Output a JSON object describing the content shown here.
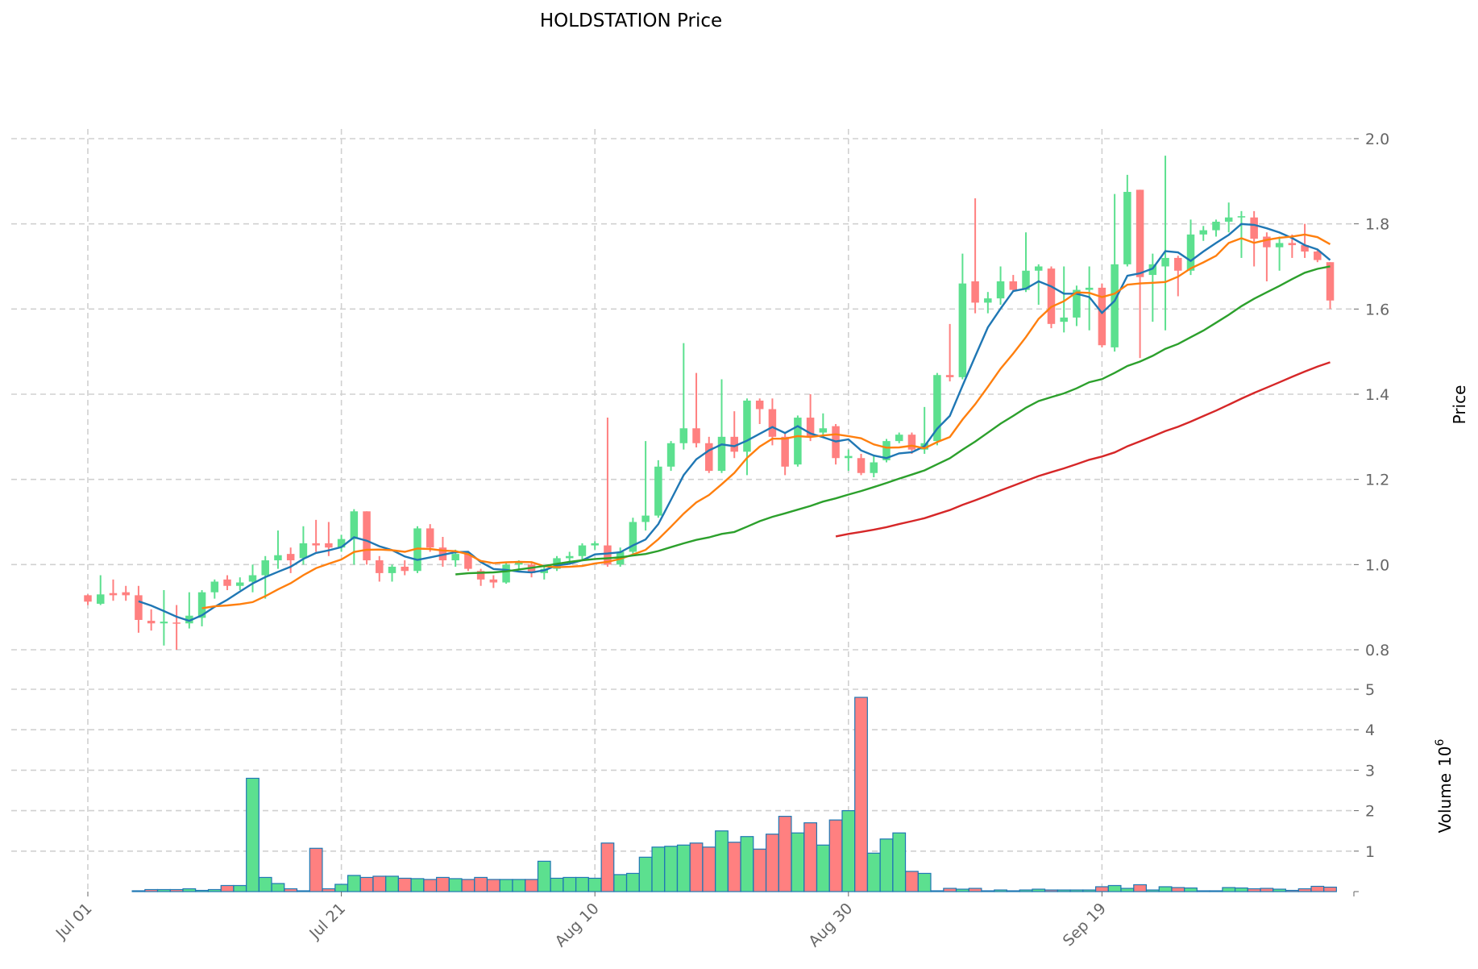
{
  "chart_data": {
    "type": "candlestick",
    "title": "HOLDSTATION Price",
    "ylabel": "Price",
    "volume_label": "Volume",
    "volume_exponent_label": "10",
    "volume_exponent": "6",
    "start_date": "2024-07-01",
    "x_ticks": [
      "Jul 01",
      "Jul 21",
      "Aug 10",
      "Aug 30",
      "Sep 19"
    ],
    "x_tick_days": [
      0,
      20,
      40,
      60,
      80
    ],
    "price_ylim": [
      0.8,
      2.0
    ],
    "price_ticks": [
      "0.8",
      "1.0",
      "1.2",
      "1.4",
      "1.6",
      "1.8",
      "2.0"
    ],
    "volume_ylim": [
      0,
      5
    ],
    "volume_ticks": [
      "1",
      "2",
      "3",
      "4",
      "5"
    ],
    "grid": true,
    "colors": {
      "up": "#5ce08f",
      "down": "#ff8080",
      "volume_edge": "#1f77b4",
      "ma": [
        "#1f77b4",
        "#ff7f0e",
        "#2ca02c",
        "#d62728"
      ]
    },
    "ma_periods": [
      5,
      10,
      30,
      60
    ],
    "ohlc": [
      [
        0.928,
        0.93,
        0.905,
        0.913
      ],
      [
        0.908,
        0.975,
        0.905,
        0.93
      ],
      [
        0.933,
        0.965,
        0.915,
        0.928
      ],
      [
        0.935,
        0.95,
        0.915,
        0.928
      ],
      [
        0.928,
        0.95,
        0.84,
        0.87
      ],
      [
        0.868,
        0.895,
        0.845,
        0.862
      ],
      [
        0.862,
        0.94,
        0.81,
        0.866
      ],
      [
        0.864,
        0.905,
        0.8,
        0.862
      ],
      [
        0.862,
        0.935,
        0.85,
        0.88
      ],
      [
        0.875,
        0.94,
        0.855,
        0.935
      ],
      [
        0.935,
        0.965,
        0.92,
        0.96
      ],
      [
        0.965,
        0.975,
        0.94,
        0.95
      ],
      [
        0.95,
        0.97,
        0.94,
        0.958
      ],
      [
        0.96,
        1.0,
        0.935,
        0.975
      ],
      [
        0.975,
        1.02,
        0.92,
        1.01
      ],
      [
        1.01,
        1.08,
        0.99,
        1.022
      ],
      [
        1.025,
        1.04,
        0.98,
        1.01
      ],
      [
        1.015,
        1.09,
        1.0,
        1.05
      ],
      [
        1.05,
        1.105,
        1.03,
        1.045
      ],
      [
        1.05,
        1.1,
        1.02,
        1.04
      ],
      [
        1.04,
        1.07,
        1.03,
        1.06
      ],
      [
        1.06,
        1.13,
        1.0,
        1.125
      ],
      [
        1.125,
        1.125,
        1.0,
        1.01
      ],
      [
        1.01,
        1.02,
        0.96,
        0.98
      ],
      [
        0.98,
        1.0,
        0.96,
        0.995
      ],
      [
        0.995,
        1.01,
        0.975,
        0.985
      ],
      [
        0.985,
        1.09,
        0.98,
        1.085
      ],
      [
        1.085,
        1.095,
        1.03,
        1.04
      ],
      [
        1.04,
        1.065,
        0.995,
        1.01
      ],
      [
        1.01,
        1.035,
        0.995,
        1.025
      ],
      [
        1.025,
        1.03,
        0.985,
        0.99
      ],
      [
        0.985,
        0.99,
        0.95,
        0.965
      ],
      [
        0.965,
        0.975,
        0.945,
        0.958
      ],
      [
        0.958,
        1.005,
        0.955,
        1.0
      ],
      [
        1.0,
        1.01,
        0.99,
        1.005
      ],
      [
        1.0,
        1.005,
        0.97,
        0.98
      ],
      [
        0.98,
        0.995,
        0.965,
        0.99
      ],
      [
        0.99,
        1.02,
        0.985,
        1.015
      ],
      [
        1.015,
        1.03,
        1.0,
        1.02
      ],
      [
        1.02,
        1.05,
        1.01,
        1.045
      ],
      [
        1.045,
        1.055,
        1.035,
        1.05
      ],
      [
        1.045,
        1.345,
        0.995,
        1.0
      ],
      [
        1.0,
        1.04,
        0.995,
        1.03
      ],
      [
        1.03,
        1.11,
        1.02,
        1.1
      ],
      [
        1.1,
        1.29,
        1.08,
        1.115
      ],
      [
        1.115,
        1.245,
        1.11,
        1.23
      ],
      [
        1.23,
        1.29,
        1.22,
        1.285
      ],
      [
        1.285,
        1.52,
        1.27,
        1.32
      ],
      [
        1.32,
        1.45,
        1.275,
        1.285
      ],
      [
        1.285,
        1.3,
        1.215,
        1.22
      ],
      [
        1.22,
        1.435,
        1.215,
        1.3
      ],
      [
        1.3,
        1.36,
        1.25,
        1.265
      ],
      [
        1.265,
        1.39,
        1.21,
        1.385
      ],
      [
        1.385,
        1.39,
        1.33,
        1.365
      ],
      [
        1.365,
        1.39,
        1.28,
        1.3
      ],
      [
        1.3,
        1.31,
        1.21,
        1.23
      ],
      [
        1.235,
        1.35,
        1.23,
        1.345
      ],
      [
        1.345,
        1.4,
        1.29,
        1.3
      ],
      [
        1.31,
        1.355,
        1.3,
        1.32
      ],
      [
        1.325,
        1.33,
        1.235,
        1.25
      ],
      [
        1.25,
        1.27,
        1.22,
        1.255
      ],
      [
        1.25,
        1.26,
        1.21,
        1.215
      ],
      [
        1.215,
        1.255,
        1.205,
        1.24
      ],
      [
        1.245,
        1.295,
        1.24,
        1.29
      ],
      [
        1.29,
        1.31,
        1.285,
        1.305
      ],
      [
        1.305,
        1.31,
        1.26,
        1.27
      ],
      [
        1.27,
        1.37,
        1.26,
        1.285
      ],
      [
        1.29,
        1.45,
        1.28,
        1.445
      ],
      [
        1.445,
        1.565,
        1.43,
        1.44
      ],
      [
        1.44,
        1.73,
        1.435,
        1.66
      ],
      [
        1.665,
        1.86,
        1.59,
        1.615
      ],
      [
        1.615,
        1.64,
        1.59,
        1.625
      ],
      [
        1.625,
        1.7,
        1.61,
        1.665
      ],
      [
        1.665,
        1.68,
        1.64,
        1.645
      ],
      [
        1.645,
        1.78,
        1.64,
        1.69
      ],
      [
        1.69,
        1.705,
        1.61,
        1.7
      ],
      [
        1.695,
        1.7,
        1.555,
        1.565
      ],
      [
        1.57,
        1.7,
        1.545,
        1.58
      ],
      [
        1.58,
        1.655,
        1.56,
        1.645
      ],
      [
        1.645,
        1.7,
        1.55,
        1.65
      ],
      [
        1.65,
        1.66,
        1.51,
        1.515
      ],
      [
        1.51,
        1.87,
        1.5,
        1.705
      ],
      [
        1.705,
        1.915,
        1.7,
        1.875
      ],
      [
        1.88,
        1.88,
        1.485,
        1.675
      ],
      [
        1.68,
        1.73,
        1.57,
        1.705
      ],
      [
        1.7,
        1.96,
        1.55,
        1.72
      ],
      [
        1.72,
        1.725,
        1.63,
        1.69
      ],
      [
        1.69,
        1.81,
        1.68,
        1.775
      ],
      [
        1.775,
        1.795,
        1.76,
        1.785
      ],
      [
        1.785,
        1.81,
        1.77,
        1.805
      ],
      [
        1.805,
        1.85,
        1.78,
        1.815
      ],
      [
        1.815,
        1.83,
        1.72,
        1.818
      ],
      [
        1.815,
        1.83,
        1.7,
        1.765
      ],
      [
        1.77,
        1.78,
        1.665,
        1.745
      ],
      [
        1.745,
        1.77,
        1.69,
        1.755
      ],
      [
        1.755,
        1.775,
        1.72,
        1.75
      ],
      [
        1.75,
        1.8,
        1.72,
        1.735
      ],
      [
        1.735,
        1.74,
        1.71,
        1.715
      ],
      [
        1.71,
        1.71,
        1.6,
        1.62
      ]
    ],
    "volume": [
      0,
      0,
      0,
      0,
      0.02,
      0.05,
      0.05,
      0.05,
      0.07,
      0.03,
      0.05,
      0.15,
      0.15,
      2.8,
      0.35,
      0.2,
      0.07,
      0.02,
      1.07,
      0.07,
      0.18,
      0.4,
      0.35,
      0.38,
      0.38,
      0.33,
      0.32,
      0.3,
      0.35,
      0.32,
      0.3,
      0.35,
      0.3,
      0.3,
      0.3,
      0.3,
      0.75,
      0.33,
      0.35,
      0.35,
      0.33,
      1.2,
      0.42,
      0.45,
      0.85,
      1.1,
      1.12,
      1.15,
      1.2,
      1.1,
      1.5,
      1.22,
      1.36,
      1.05,
      1.42,
      1.86,
      1.45,
      1.7,
      1.15,
      1.77,
      2.0,
      4.8,
      0.95,
      1.3,
      1.45,
      0.5,
      0.45,
      0.02,
      0.08,
      0.06,
      0.08,
      0.02,
      0.04,
      0.02,
      0.04,
      0.06,
      0.04,
      0.04,
      0.04,
      0.04,
      0.12,
      0.15,
      0.08,
      0.17,
      0.04,
      0.12,
      0.1,
      0.09,
      0.02,
      0.02,
      0.1,
      0.09,
      0.07,
      0.08,
      0.06,
      0.03,
      0.07,
      0.13,
      0.11
    ]
  }
}
